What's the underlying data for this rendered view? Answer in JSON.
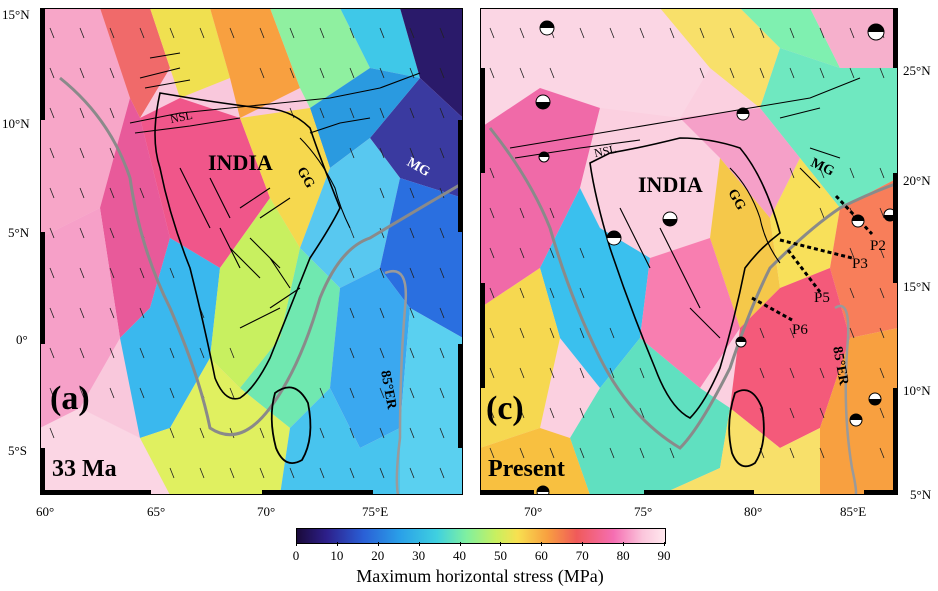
{
  "panel_a": {
    "letter": "(a)",
    "age": "33 Ma",
    "region_label": "INDIA",
    "features": {
      "nsl": "NSL",
      "gg": "GG",
      "mg": "MG",
      "er": "85°ER"
    },
    "lat_labels": [
      "15°N",
      "10°N",
      "5°N",
      "0°",
      "5°S"
    ],
    "lon_labels": [
      "60°",
      "65°",
      "70°",
      "75°E"
    ]
  },
  "panel_c": {
    "letter": "(c)",
    "age": "Present",
    "region_label": "INDIA",
    "features": {
      "nsl": "NSL",
      "gg": "GG",
      "mg": "MG",
      "er": "85°ER",
      "p2": "P2",
      "p3": "P3",
      "p5": "P5",
      "p6": "P6"
    },
    "lat_labels": [
      "25°N",
      "20°N",
      "15°N",
      "10°N",
      "5°N"
    ],
    "lon_labels": [
      "70°",
      "75°",
      "80°",
      "85°E"
    ]
  },
  "colorbar": {
    "title": "Maximum horizontal stress (MPa)",
    "ticks": [
      "0",
      "10",
      "20",
      "30",
      "40",
      "50",
      "60",
      "70",
      "80",
      "90"
    ],
    "range": [
      0,
      90
    ]
  }
}
